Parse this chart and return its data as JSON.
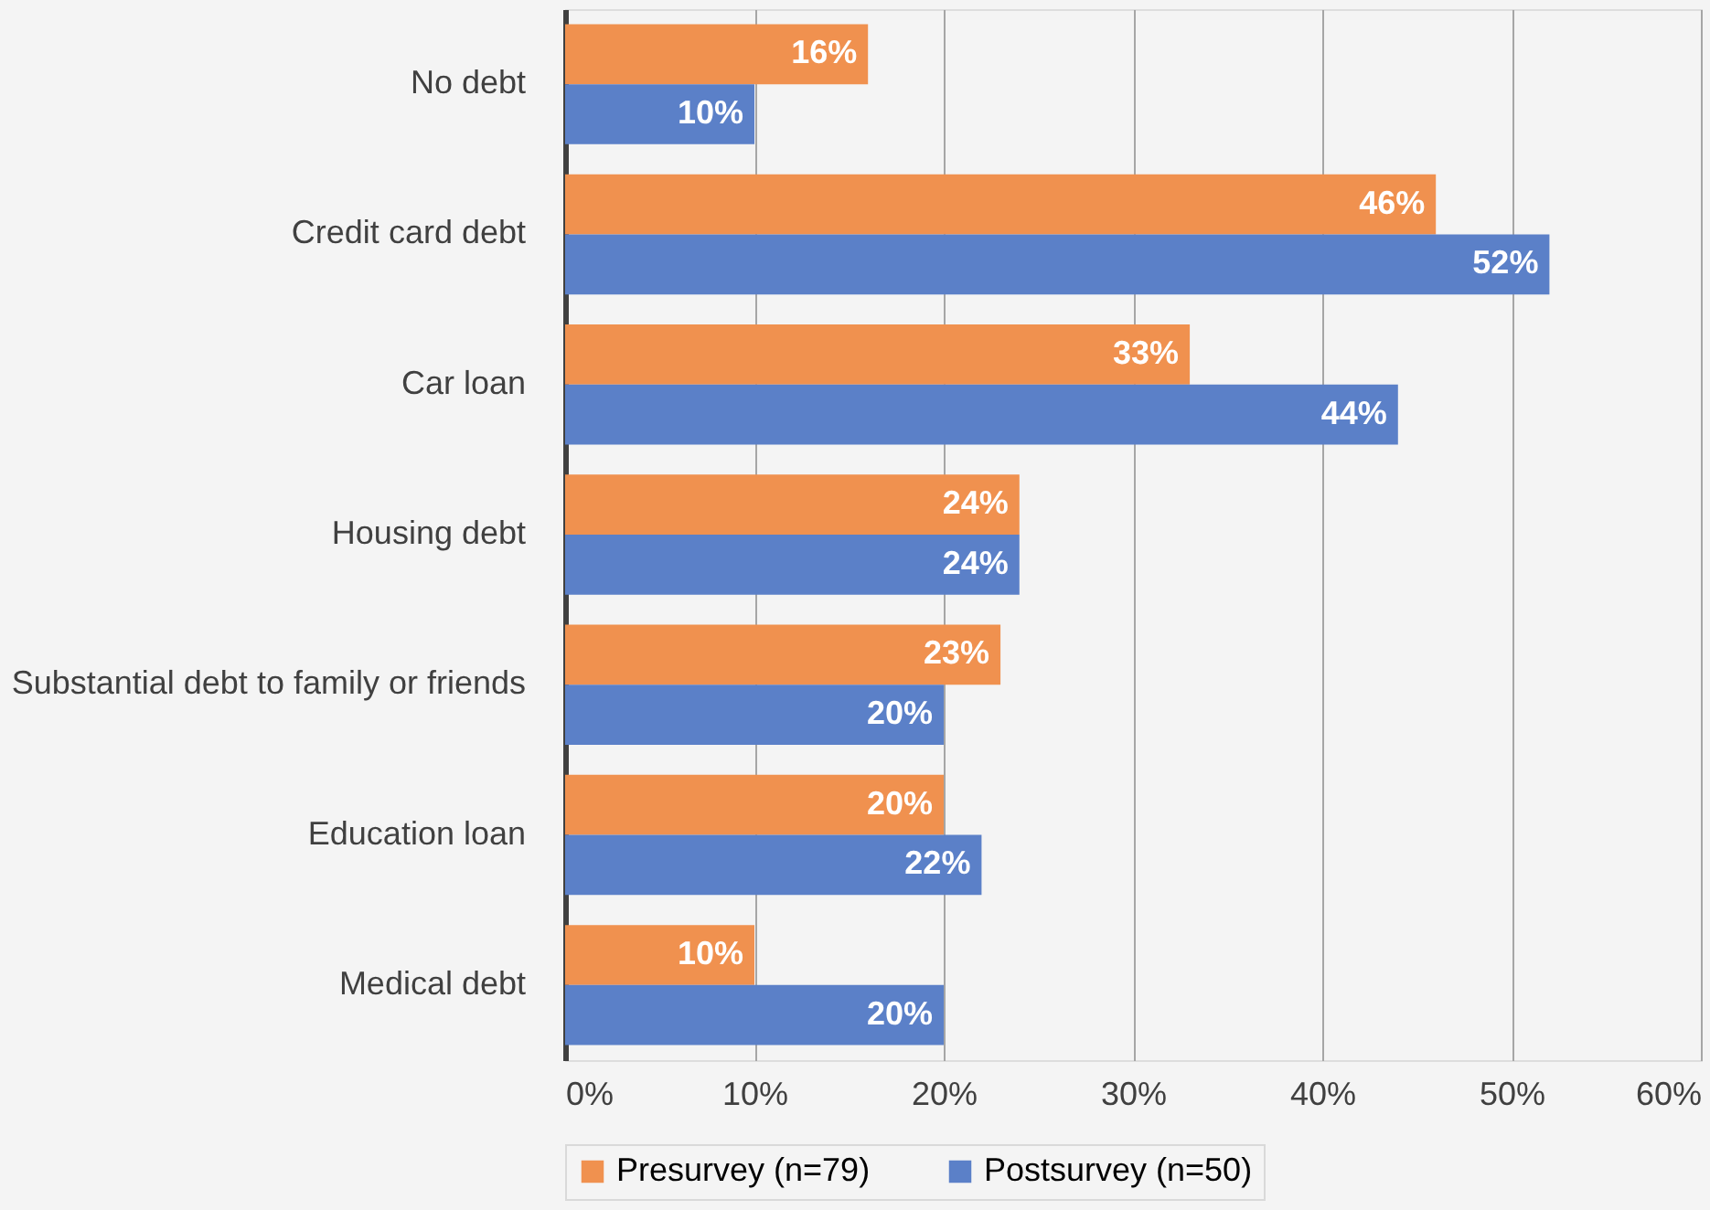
{
  "chart_data": {
    "type": "bar",
    "orientation": "horizontal",
    "categories": [
      "No debt",
      "Credit card debt",
      "Car loan",
      "Housing debt",
      "Substantial debt to family or friends",
      "Education loan",
      "Medical debt"
    ],
    "series": [
      {
        "name": "Presurvey (n=79)",
        "color": "#f0914f",
        "values": [
          16,
          46,
          33,
          24,
          23,
          20,
          10
        ],
        "value_labels": [
          "16%",
          "46%",
          "33%",
          "24%",
          "23%",
          "20%",
          "10%"
        ]
      },
      {
        "name": "Postsurvey (n=50)",
        "color": "#5b80c8",
        "values": [
          10,
          52,
          44,
          24,
          20,
          22,
          20
        ],
        "value_labels": [
          "10%",
          "52%",
          "44%",
          "24%",
          "20%",
          "22%",
          "20%"
        ]
      }
    ],
    "xlim": [
      0,
      60
    ],
    "xticks": [
      {
        "value": 0,
        "label": "0%"
      },
      {
        "value": 10,
        "label": "10%"
      },
      {
        "value": 20,
        "label": "20%"
      },
      {
        "value": 30,
        "label": "30%"
      },
      {
        "value": 40,
        "label": "40%"
      },
      {
        "value": 50,
        "label": "50%"
      },
      {
        "value": 60,
        "label": "60%"
      }
    ],
    "grid": "x",
    "legend": "bottom"
  }
}
